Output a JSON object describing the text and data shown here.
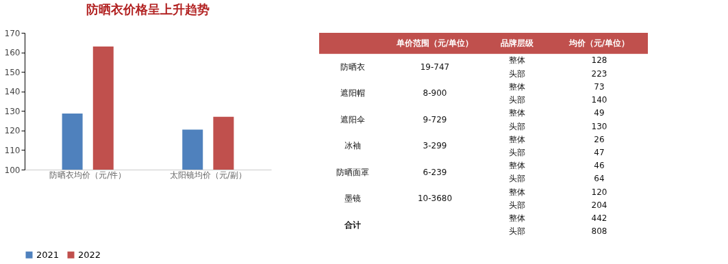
{
  "chart_data": [
    {
      "type": "bar",
      "title": "防晒衣价格呈上升趋势",
      "categories": [
        "防晒衣均价（元/件）",
        "太阳镜均价（元/副）"
      ],
      "series": [
        {
          "name": "2021",
          "color": "#4f81bd",
          "values": [
            128.7,
            120.5
          ]
        },
        {
          "name": "2022",
          "color": "#c0504d",
          "values": [
            163,
            127
          ]
        }
      ],
      "ylim": [
        100,
        170
      ],
      "yticks": [
        100,
        110,
        120,
        130,
        140,
        150,
        160,
        170
      ],
      "grid": false,
      "legend": "bottom"
    },
    {
      "type": "other",
      "categories": [
        null,
        "单价范围（元/单位）",
        "品牌层级",
        "均价（元/单位）"
      ],
      "cell_labels": [
        [
          "防晒衣",
          "19-747",
          "整体",
          "128"
        ],
        [
          null,
          null,
          "头部",
          "223"
        ],
        [
          "遮阳帽",
          "8-900",
          "整体",
          "73"
        ],
        [
          null,
          null,
          "头部",
          "140"
        ],
        [
          "遮阳伞",
          "9-729",
          "整体",
          "49"
        ],
        [
          null,
          null,
          "头部",
          "130"
        ],
        [
          "冰袖",
          "3-299",
          "整体",
          "26"
        ],
        [
          null,
          null,
          "头部",
          "47"
        ],
        [
          "防晒面罩",
          "6-239",
          "整体",
          "46"
        ],
        [
          null,
          null,
          "头部",
          "64"
        ],
        [
          "墨镜",
          "10-3680",
          "整体",
          "120"
        ],
        [
          null,
          null,
          "头部",
          "204"
        ],
        [
          "合计",
          null,
          "整体",
          "442"
        ],
        [
          null,
          null,
          "头部",
          "808"
        ]
      ]
    }
  ]
}
